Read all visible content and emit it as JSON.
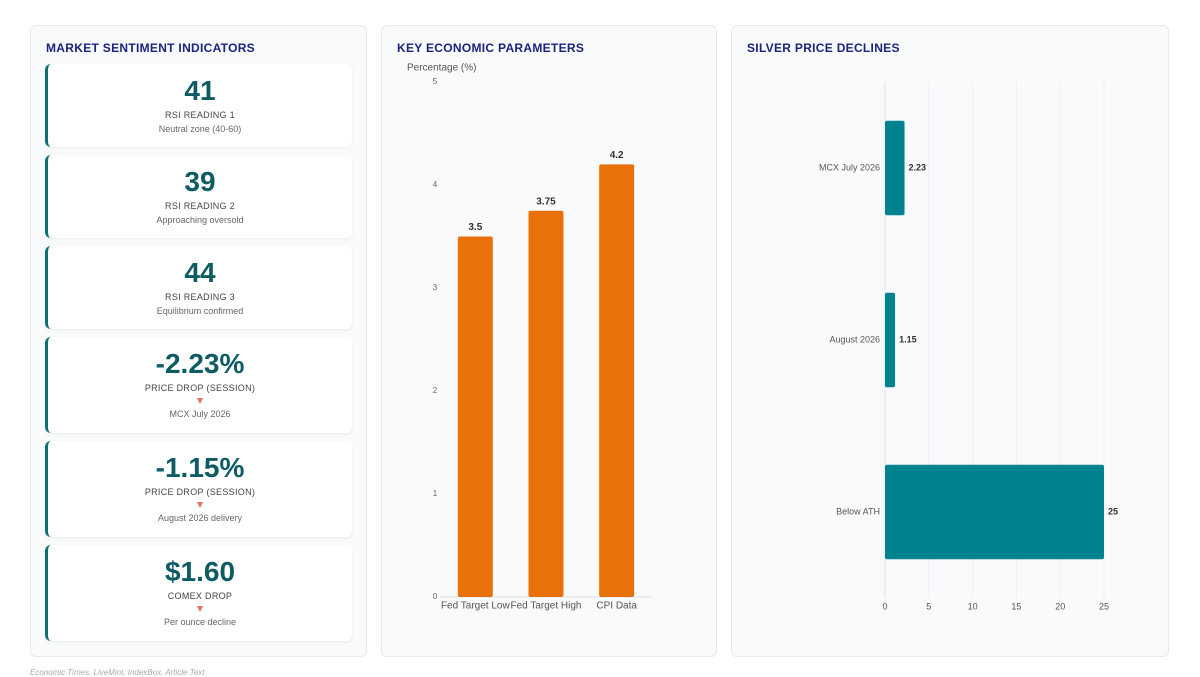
{
  "sentiment": {
    "title": "MARKET SENTIMENT INDICATORS",
    "cards": [
      {
        "value": "41",
        "label": "RSI READING 1",
        "note": "Neutral zone (40-60)"
      },
      {
        "value": "39",
        "label": "RSI READING 2",
        "note": "Approaching oversold"
      },
      {
        "value": "44",
        "label": "RSI READING 3",
        "note": "Equilibrium confirmed"
      },
      {
        "value": "-2.23%",
        "label": "PRICE DROP (SESSION)",
        "note": "MCX July 2026",
        "trend": "down"
      },
      {
        "value": "-1.15%",
        "label": "PRICE DROP (SESSION)",
        "note": "August 2026 delivery",
        "trend": "down"
      },
      {
        "value": "$1.60",
        "label": "COMEX DROP",
        "note": "Per ounce decline",
        "trend": "down"
      }
    ]
  },
  "chart_data": [
    {
      "type": "bar",
      "orientation": "vertical",
      "title": "KEY ECONOMIC PARAMETERS",
      "y_label": "Percentage (%)",
      "categories": [
        "Fed Target Low",
        "Fed Target High",
        "CPI Data"
      ],
      "values": [
        3.5,
        3.75,
        4.2
      ],
      "color": "#e8710a",
      "ylim": [
        0,
        5
      ],
      "yticks": [
        0,
        1,
        2,
        3,
        4,
        5
      ],
      "grid": false
    },
    {
      "type": "bar",
      "orientation": "horizontal",
      "title": "SILVER PRICE DECLINES",
      "categories": [
        "MCX July 2026",
        "August 2026",
        "Below ATH"
      ],
      "values": [
        2.23,
        1.15,
        25
      ],
      "color": "#00838f",
      "xlim": [
        0,
        25
      ],
      "xticks": [
        0,
        5,
        10,
        15,
        20,
        25
      ],
      "grid": true
    }
  ],
  "source": "Economic Times, LiveMint, IndexBox, Article Text"
}
